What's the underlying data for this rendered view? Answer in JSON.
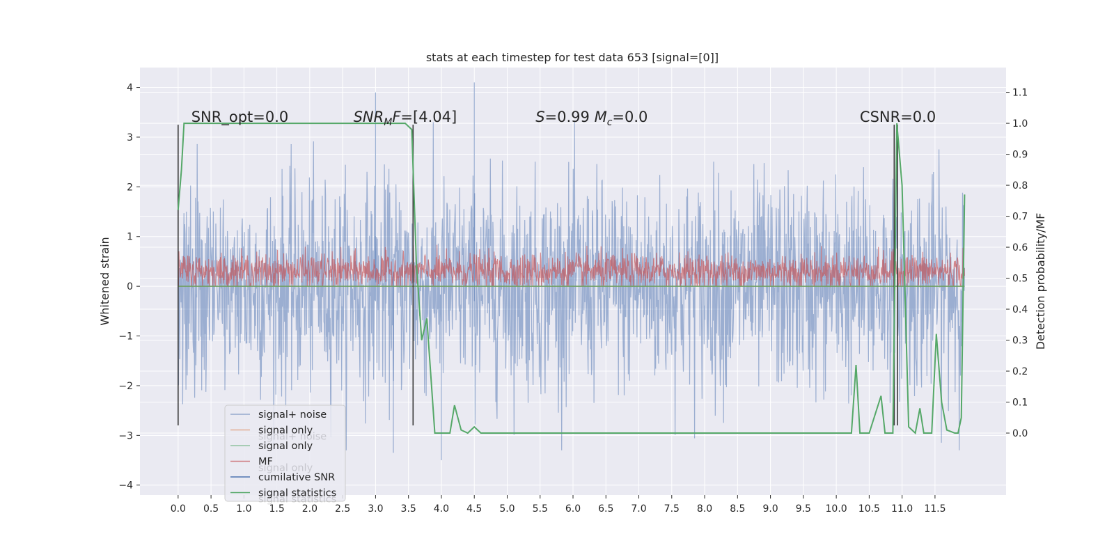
{
  "chart_data": {
    "type": "line",
    "title": "stats at each timestep for test data 653 [signal=[0]]",
    "xlabel": "",
    "ylabel": "Whitened strain",
    "ylabel_right": "Detection probability/MF",
    "xlim": [
      -0.58,
      12.58
    ],
    "ylim": [
      -4.2,
      4.4
    ],
    "ylim_right": [
      -0.2,
      1.18
    ],
    "x_ticks": [
      "0.0",
      "0.5",
      "1.0",
      "1.5",
      "2.0",
      "2.5",
      "3.0",
      "3.5",
      "4.0",
      "4.5",
      "5.0",
      "5.5",
      "6.0",
      "6.5",
      "7.0",
      "7.5",
      "8.0",
      "8.5",
      "9.0",
      "9.5",
      "10.0",
      "10.5",
      "11.0",
      "11.5"
    ],
    "y_ticks": [
      "4",
      "3",
      "2",
      "1",
      "0",
      "−1",
      "−2",
      "−3",
      "−4"
    ],
    "y_ticks_right": [
      "1.1",
      "1.0",
      "0.9",
      "0.8",
      "0.7",
      "0.6",
      "0.5",
      "0.4",
      "0.3",
      "0.2",
      "0.1",
      "0.0"
    ],
    "grid": true,
    "legend_placement": "lower-left",
    "annotations": [
      {
        "text": "SNR_opt=0.0",
        "x": 0.2
      },
      {
        "text": "SNR_MF=[4.04]",
        "x": 2.6
      },
      {
        "text": "S=0.99   M_c=0.0",
        "x": 5.6
      },
      {
        "text": "CSNR=0.0",
        "x": 10.4
      }
    ],
    "vertical_markers": [
      0.0,
      3.57,
      10.88,
      10.93
    ],
    "series": [
      {
        "name": "signal+ noise",
        "color": "#4c72b0",
        "values_summary": "whitened noise, x 0.0–11.95, mostly within ±2.5, peaks near 4.1 at x≈4.5 and 3.9 at x≈3.0, lows near −3.5 at x≈4.0"
      },
      {
        "name": "signal only",
        "color": "#dd8452",
        "values_summary": "≈0 throughout"
      },
      {
        "name": "signal only",
        "color": "#55a868",
        "values_summary": "≈0 throughout"
      },
      {
        "name": "MF",
        "color": "#c44e52",
        "values_summary": "matched filter output, x 0.0–11.95, between 0 and about 0.9"
      },
      {
        "name": "cumilative SNR",
        "color": "#4c72b0",
        "values_summary": "not visible"
      },
      {
        "name": "signal statistics",
        "color": "#55a868",
        "axis": "right",
        "points": [
          [
            0.0,
            0.72
          ],
          [
            0.05,
            0.85
          ],
          [
            0.09,
            1.0
          ],
          [
            0.3,
            1.0
          ],
          [
            1.0,
            1.0
          ],
          [
            2.0,
            1.0
          ],
          [
            3.0,
            1.0
          ],
          [
            3.45,
            1.0
          ],
          [
            3.55,
            0.98
          ],
          [
            3.62,
            0.55
          ],
          [
            3.7,
            0.3
          ],
          [
            3.78,
            0.37
          ],
          [
            3.9,
            0.0
          ],
          [
            4.0,
            0.0
          ],
          [
            4.13,
            0.0
          ],
          [
            4.2,
            0.09
          ],
          [
            4.3,
            0.01
          ],
          [
            4.4,
            0.0
          ],
          [
            4.5,
            0.02
          ],
          [
            4.6,
            0.0
          ],
          [
            4.7,
            0.0
          ],
          [
            5.0,
            0.0
          ],
          [
            7.0,
            0.0
          ],
          [
            9.5,
            0.0
          ],
          [
            10.0,
            0.0
          ],
          [
            10.23,
            0.0
          ],
          [
            10.3,
            0.22
          ],
          [
            10.36,
            0.0
          ],
          [
            10.5,
            0.0
          ],
          [
            10.68,
            0.12
          ],
          [
            10.74,
            0.0
          ],
          [
            10.86,
            0.0
          ],
          [
            10.92,
            1.0
          ],
          [
            11.0,
            0.8
          ],
          [
            11.1,
            0.02
          ],
          [
            11.2,
            0.0
          ],
          [
            11.27,
            0.08
          ],
          [
            11.33,
            0.0
          ],
          [
            11.45,
            0.0
          ],
          [
            11.52,
            0.32
          ],
          [
            11.6,
            0.1
          ],
          [
            11.68,
            0.01
          ],
          [
            11.8,
            0.0
          ],
          [
            11.85,
            0.0
          ],
          [
            11.9,
            0.05
          ],
          [
            11.95,
            0.77
          ]
        ]
      }
    ]
  },
  "legend": [
    {
      "label": "signal+ noise",
      "color": "#4c72b0",
      "alpha": 0.55
    },
    {
      "label": "signal only",
      "color": "#dd8452",
      "alpha": 0.6
    },
    {
      "label": "signal only",
      "color": "#55a868",
      "alpha": 0.6
    },
    {
      "label": "MF",
      "color": "#c44e52",
      "alpha": 0.7
    },
    {
      "label": "cumilative SNR",
      "color": "#4c72b0",
      "alpha": 1.0
    },
    {
      "label": "signal statistics",
      "color": "#55a868",
      "alpha": 1.0
    }
  ],
  "legend_ghost": [
    "signal+ noise",
    "signal only",
    "signal statistics"
  ],
  "colors": {
    "axes_bg": "#eaeaf2",
    "grid": "#ffffff"
  }
}
